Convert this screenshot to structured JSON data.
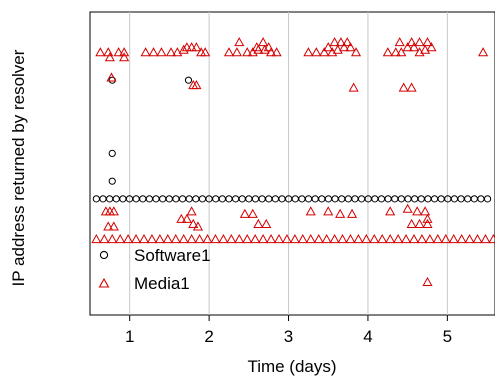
{
  "chart_data": {
    "type": "scatter",
    "xlabel": "Time (days)",
    "ylabel": "IP address returned by resolver",
    "xlim": [
      0.5,
      5.6
    ],
    "ylim": [
      0,
      12
    ],
    "xticks": [
      1,
      2,
      3,
      4,
      5
    ],
    "grid": "vertical",
    "legend_position": "bottom-left",
    "series": [
      {
        "name": "Software1",
        "marker": "circle",
        "color": "#000000",
        "points": [
          [
            0.78,
            9.3
          ],
          [
            0.78,
            6.4
          ],
          [
            0.78,
            5.3
          ],
          [
            1.74,
            9.3
          ]
        ],
        "line_y": 4.6,
        "line_x": [
          0.58,
          5.58
        ]
      },
      {
        "name": "Media1",
        "marker": "triangle",
        "color": "#d40000",
        "points": [
          [
            0.63,
            10.4
          ],
          [
            0.73,
            10.4
          ],
          [
            0.86,
            10.4
          ],
          [
            0.93,
            10.4
          ],
          [
            0.75,
            10.2
          ],
          [
            0.93,
            10.2
          ],
          [
            0.77,
            9.4
          ],
          [
            0.7,
            4.1
          ],
          [
            0.75,
            4.1
          ],
          [
            0.8,
            4.1
          ],
          [
            0.73,
            3.5
          ],
          [
            0.8,
            3.5
          ],
          [
            1.2,
            10.4
          ],
          [
            1.3,
            10.4
          ],
          [
            1.4,
            10.4
          ],
          [
            1.52,
            10.4
          ],
          [
            1.6,
            10.4
          ],
          [
            1.68,
            10.5
          ],
          [
            1.72,
            10.6
          ],
          [
            1.78,
            10.6
          ],
          [
            1.84,
            10.6
          ],
          [
            1.9,
            10.4
          ],
          [
            1.95,
            10.4
          ],
          [
            1.8,
            9.1
          ],
          [
            1.84,
            9.1
          ],
          [
            1.78,
            4.1
          ],
          [
            1.65,
            3.8
          ],
          [
            1.72,
            3.8
          ],
          [
            1.8,
            3.6
          ],
          [
            1.86,
            3.5
          ],
          [
            2.25,
            10.4
          ],
          [
            2.35,
            10.4
          ],
          [
            2.48,
            10.4
          ],
          [
            2.55,
            10.4
          ],
          [
            2.62,
            10.5
          ],
          [
            2.7,
            10.5
          ],
          [
            2.78,
            10.4
          ],
          [
            2.85,
            10.4
          ],
          [
            2.38,
            10.8
          ],
          [
            2.6,
            10.6
          ],
          [
            2.68,
            10.8
          ],
          [
            2.75,
            10.6
          ],
          [
            2.45,
            4.0
          ],
          [
            2.55,
            4.0
          ],
          [
            2.62,
            3.6
          ],
          [
            2.72,
            3.6
          ],
          [
            3.25,
            10.4
          ],
          [
            3.35,
            10.4
          ],
          [
            3.45,
            10.4
          ],
          [
            3.55,
            10.4
          ],
          [
            3.62,
            10.5
          ],
          [
            3.7,
            10.6
          ],
          [
            3.78,
            10.6
          ],
          [
            3.85,
            10.4
          ],
          [
            3.5,
            10.6
          ],
          [
            3.58,
            10.8
          ],
          [
            3.66,
            10.8
          ],
          [
            3.74,
            10.8
          ],
          [
            3.82,
            9.0
          ],
          [
            3.28,
            4.1
          ],
          [
            3.5,
            4.1
          ],
          [
            3.65,
            4.0
          ],
          [
            3.8,
            4.0
          ],
          [
            4.25,
            10.4
          ],
          [
            4.35,
            10.4
          ],
          [
            4.42,
            10.4
          ],
          [
            4.5,
            10.6
          ],
          [
            4.58,
            10.6
          ],
          [
            4.65,
            10.4
          ],
          [
            4.72,
            10.5
          ],
          [
            4.8,
            10.6
          ],
          [
            4.4,
            10.8
          ],
          [
            4.55,
            10.8
          ],
          [
            4.65,
            10.8
          ],
          [
            4.75,
            10.8
          ],
          [
            4.45,
            9.0
          ],
          [
            4.55,
            9.0
          ],
          [
            5.45,
            10.4
          ],
          [
            4.28,
            4.1
          ],
          [
            4.5,
            4.2
          ],
          [
            4.62,
            4.1
          ],
          [
            4.72,
            4.1
          ],
          [
            4.55,
            3.6
          ],
          [
            4.65,
            3.6
          ],
          [
            4.75,
            3.6
          ],
          [
            4.75,
            3.8
          ],
          [
            4.75,
            1.3
          ]
        ],
        "line_y": 3.0,
        "line_x": [
          0.58,
          5.58
        ]
      }
    ]
  }
}
